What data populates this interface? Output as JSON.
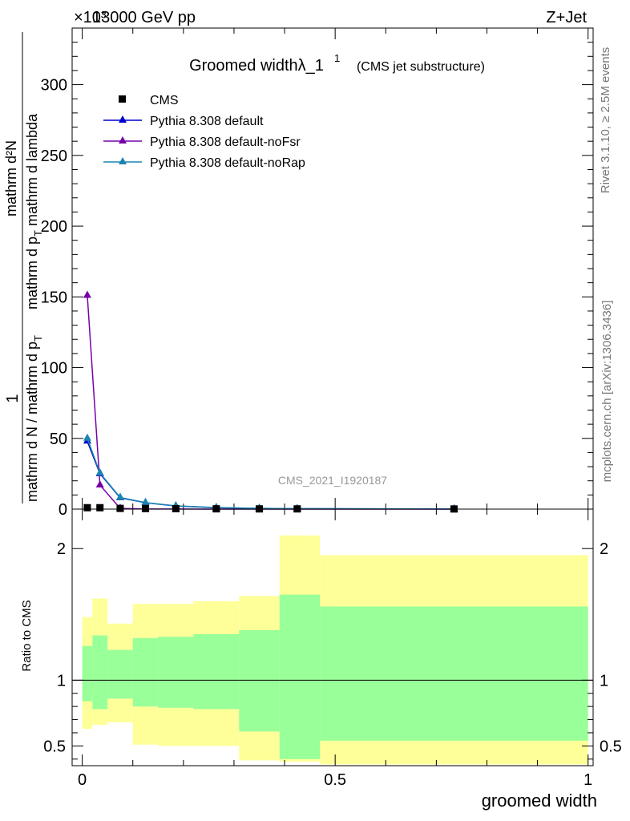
{
  "header": {
    "energy": "13000 GeV pp",
    "process": "Z+Jet",
    "exponent": "×10³"
  },
  "side_text": {
    "rivet": "Rivet 3.1.10, ≥ 2.5M events",
    "mcplots": "mcplots.cern.ch [arXiv:1306.3436]"
  },
  "plot_title": {
    "main": "Groomed widthλ_1",
    "sup": "1",
    "sub": "(CMS jet substructure)"
  },
  "watermark": "CMS_2021_I1920187",
  "ylabel_main": {
    "one": "1",
    "lower": "mathrm d N / mathrm d p",
    "lower_sub": "T",
    "upper": "mathrm d²N",
    "upper_b": "mathrm d p",
    "upper_b_sub": "T",
    "upper_c": " mathrm d lambda"
  },
  "ylabel_ratio": "Ratio to CMS",
  "xlabel": "groomed width",
  "colors": {
    "default": "#0000cc",
    "noFsr": "#7700aa",
    "noRap": "#1a85b0",
    "band_outer": "#ffff99",
    "band_inner": "#99ff99"
  },
  "chart_data": [
    {
      "type": "line",
      "panel": "main",
      "x_ticks": [
        "0",
        "0.5",
        "1"
      ],
      "y_ticks": [
        "0",
        "50",
        "100",
        "150",
        "200",
        "250",
        "300"
      ],
      "xlim": [
        -0.02,
        1.01
      ],
      "ylim": [
        0,
        340
      ],
      "legend_position": "top-left",
      "cms": {
        "name": "CMS",
        "x": [
          0.01,
          0.035,
          0.075,
          0.125,
          0.185,
          0.265,
          0.35,
          0.425,
          0.735
        ],
        "y": [
          1,
          1,
          0.5,
          0.4,
          0.3,
          0.2,
          0.15,
          0.15,
          0.1
        ]
      },
      "series": [
        {
          "name": "Pythia 8.308 default",
          "color_key": "default",
          "x": [
            0.01,
            0.035,
            0.075,
            0.125,
            0.185,
            0.265,
            0.35,
            0.425,
            0.735
          ],
          "values": [
            48,
            25,
            8,
            4.5,
            2.2,
            1.0,
            0.5,
            0.3,
            0.05
          ]
        },
        {
          "name": "Pythia 8.308 default-noFsr",
          "color_key": "noFsr",
          "x": [
            0.01,
            0.035,
            0.075,
            0.125,
            0.185,
            0.265,
            0.35,
            0.425,
            0.735
          ],
          "values": [
            151,
            17,
            0.5,
            0.1,
            0.05,
            0.02,
            0.01,
            0.01,
            0
          ]
        },
        {
          "name": "Pythia 8.308 default-noRap",
          "color_key": "noRap",
          "x": [
            0.01,
            0.035,
            0.075,
            0.125,
            0.185,
            0.265,
            0.35,
            0.425,
            0.735
          ],
          "values": [
            50,
            25.5,
            8.2,
            4.6,
            2.3,
            1.1,
            0.55,
            0.3,
            0.05
          ]
        }
      ]
    },
    {
      "type": "area",
      "panel": "ratio",
      "x_ticks": [
        "0",
        "0.5",
        "1"
      ],
      "y_ticks": [
        "0.5",
        "1",
        "2"
      ],
      "xlim": [
        -0.02,
        1.01
      ],
      "ylim": [
        0.35,
        2.3
      ],
      "bin_edges": [
        0,
        0.02,
        0.05,
        0.1,
        0.15,
        0.22,
        0.31,
        0.39,
        0.47,
        1.0
      ],
      "outer_band": {
        "low": [
          0.63,
          0.66,
          0.68,
          0.51,
          0.5,
          0.5,
          0.39,
          0.38,
          0.36
        ],
        "high": [
          1.48,
          1.62,
          1.43,
          1.58,
          1.58,
          1.6,
          1.64,
          2.1,
          1.95
        ]
      },
      "inner_band": {
        "low": [
          0.84,
          0.78,
          0.86,
          0.8,
          0.79,
          0.78,
          0.61,
          0.4,
          0.54
        ],
        "high": [
          1.26,
          1.34,
          1.23,
          1.32,
          1.33,
          1.35,
          1.38,
          1.65,
          1.56
        ]
      },
      "reference_line": 1
    }
  ]
}
